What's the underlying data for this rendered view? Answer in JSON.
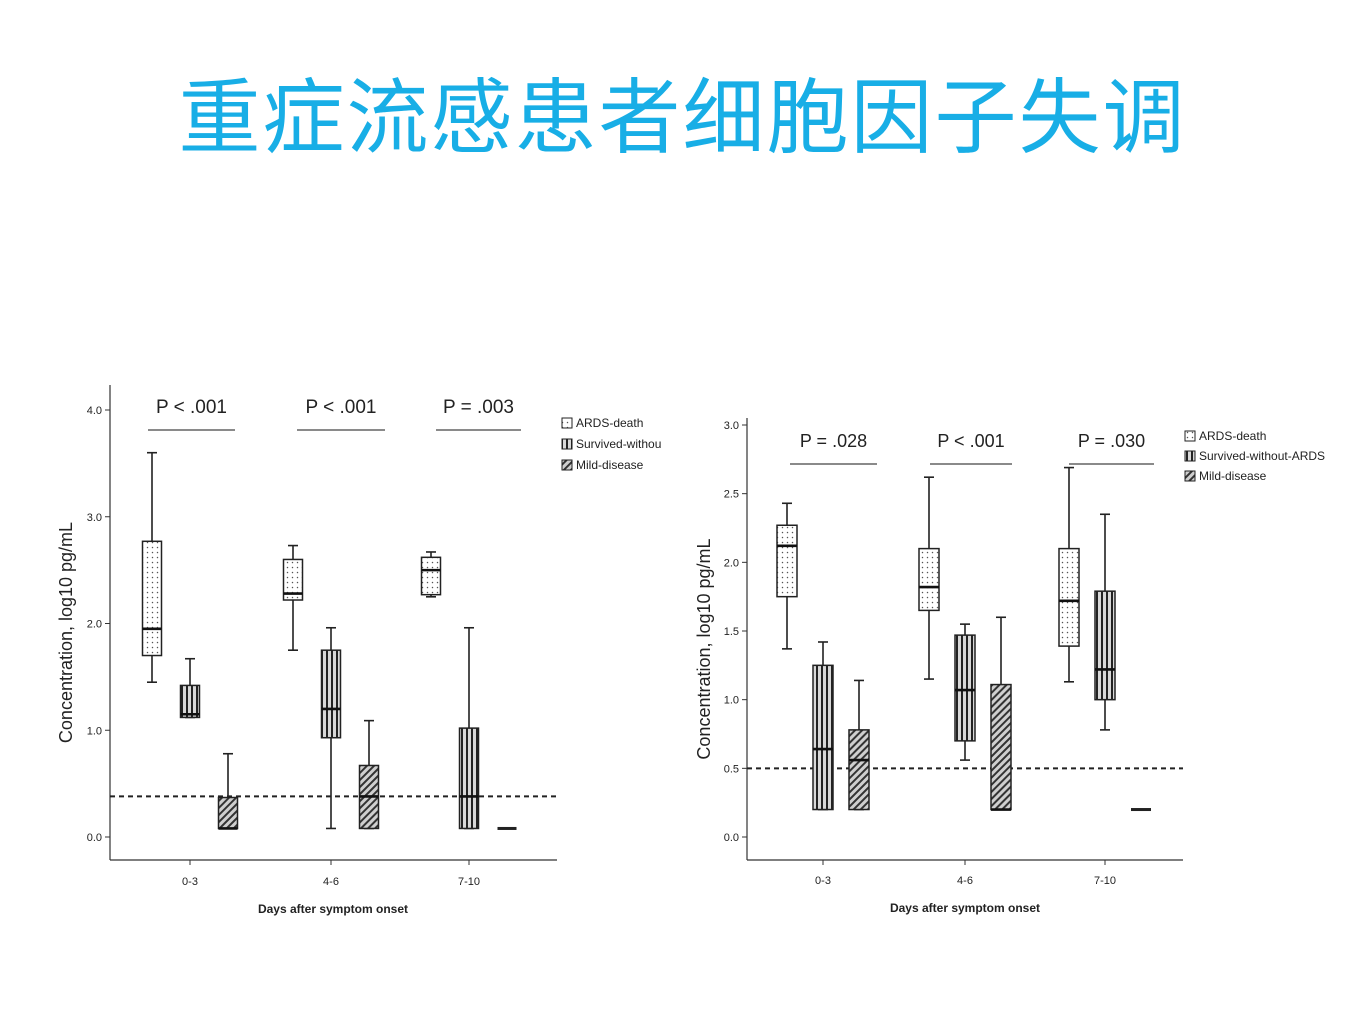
{
  "slide_title": "重症流感患者细胞因子失调",
  "colors": {
    "title": "#18aee6",
    "ink": "#222222"
  },
  "chart_data": [
    {
      "type": "box",
      "xlabel": "Days after symptom onset",
      "ylabel": "Concentration, log10 pg/mL",
      "ylim": [
        0.0,
        4.0
      ],
      "yticks": [
        "0.0",
        "1.0",
        "2.0",
        "3.0",
        "4.0"
      ],
      "categories": [
        "0-3",
        "4-6",
        "7-10"
      ],
      "p_values": [
        "P < .001",
        "P < .001",
        "P = .003"
      ],
      "legend": [
        "ARDS-death",
        "Survived-withou",
        "Mild-disease"
      ],
      "legend_position": "top-right",
      "reference_line": 0.38,
      "series": [
        {
          "name": "ARDS-death",
          "pattern": "dots",
          "boxes": [
            {
              "min": 1.45,
              "q1": 1.7,
              "median": 1.95,
              "q3": 2.77,
              "max": 3.6
            },
            {
              "min": 1.75,
              "q1": 2.22,
              "median": 2.28,
              "q3": 2.6,
              "max": 2.73
            },
            {
              "min": 2.25,
              "q1": 2.27,
              "median": 2.5,
              "q3": 2.62,
              "max": 2.67
            }
          ]
        },
        {
          "name": "Survived-without-ARDS",
          "pattern": "vertical",
          "boxes": [
            {
              "min": 1.12,
              "q1": 1.12,
              "median": 1.15,
              "q3": 1.42,
              "max": 1.67
            },
            {
              "min": 0.08,
              "q1": 0.93,
              "median": 1.2,
              "q3": 1.75,
              "max": 1.96
            },
            {
              "min": 0.08,
              "q1": 0.08,
              "median": 0.38,
              "q3": 1.02,
              "max": 1.96
            }
          ]
        },
        {
          "name": "Mild-disease",
          "pattern": "diagonal",
          "boxes": [
            {
              "min": 0.08,
              "q1": 0.08,
              "median": 0.08,
              "q3": 0.37,
              "max": 0.78
            },
            {
              "min": 0.08,
              "q1": 0.08,
              "median": 0.38,
              "q3": 0.67,
              "max": 1.09
            },
            {
              "min": 0.08,
              "q1": 0.08,
              "median": 0.08,
              "q3": 0.08,
              "max": 0.08
            }
          ]
        }
      ]
    },
    {
      "type": "box",
      "xlabel": "Days after symptom onset",
      "ylabel": "Concentration, log10 pg/mL",
      "ylim": [
        0.0,
        3.0
      ],
      "yticks": [
        "0.0",
        "0.5",
        "1.0",
        "1.5",
        "2.0",
        "2.5",
        "3.0"
      ],
      "categories": [
        "0-3",
        "4-6",
        "7-10"
      ],
      "p_values": [
        "P = .028",
        "P < .001",
        "P = .030"
      ],
      "legend": [
        "ARDS-death",
        "Survived-without-ARDS",
        "Mild-disease"
      ],
      "legend_position": "top-right",
      "reference_line": 0.5,
      "series": [
        {
          "name": "ARDS-death",
          "pattern": "dots",
          "boxes": [
            {
              "min": 1.37,
              "q1": 1.75,
              "median": 2.12,
              "q3": 2.27,
              "max": 2.43
            },
            {
              "min": 1.15,
              "q1": 1.65,
              "median": 1.82,
              "q3": 2.1,
              "max": 2.62
            },
            {
              "min": 1.13,
              "q1": 1.39,
              "median": 1.72,
              "q3": 2.1,
              "max": 2.69
            }
          ]
        },
        {
          "name": "Survived-without-ARDS",
          "pattern": "vertical",
          "boxes": [
            {
              "min": 0.2,
              "q1": 0.2,
              "median": 0.64,
              "q3": 1.25,
              "max": 1.42
            },
            {
              "min": 0.56,
              "q1": 0.7,
              "median": 1.07,
              "q3": 1.47,
              "max": 1.55
            },
            {
              "min": 0.78,
              "q1": 1.0,
              "median": 1.22,
              "q3": 1.79,
              "max": 2.35
            }
          ]
        },
        {
          "name": "Mild-disease",
          "pattern": "diagonal",
          "boxes": [
            {
              "min": 0.2,
              "q1": 0.2,
              "median": 0.56,
              "q3": 0.78,
              "max": 1.14
            },
            {
              "min": 0.2,
              "q1": 0.2,
              "median": 0.2,
              "q3": 1.11,
              "max": 1.6
            },
            {
              "min": 0.2,
              "q1": 0.2,
              "median": 0.2,
              "q3": 0.2,
              "max": 0.2
            }
          ]
        }
      ]
    }
  ]
}
